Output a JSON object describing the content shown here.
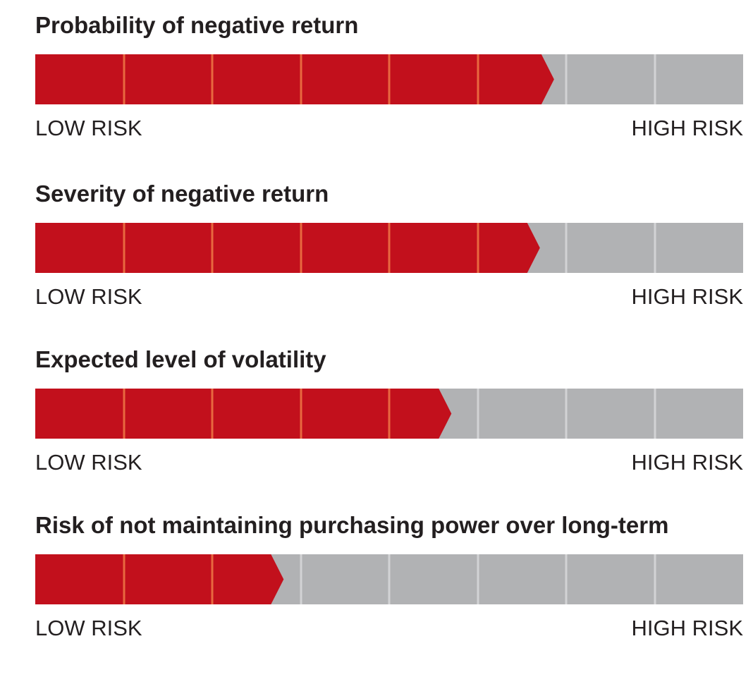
{
  "colors": {
    "filled": "#c2101c",
    "empty": "#b1b2b4",
    "filled_divider": "#e8693f",
    "empty_divider": "#d2d3d5",
    "text": "#231f20"
  },
  "segments_total": 8,
  "scales": [
    {
      "title": "Probability of negative return",
      "filled_fraction": 0.715,
      "low_label": "LOW RISK",
      "high_label": "HIGH RISK"
    },
    {
      "title": "Severity of negative return",
      "filled_fraction": 0.695,
      "low_label": "LOW RISK",
      "high_label": "HIGH RISK"
    },
    {
      "title": "Expected level of volatility",
      "filled_fraction": 0.57,
      "low_label": "LOW RISK",
      "high_label": "HIGH RISK"
    },
    {
      "title": "Risk of not maintaining purchasing power over long-term",
      "filled_fraction": 0.333,
      "low_label": "LOW RISK",
      "high_label": "HIGH RISK"
    }
  ]
}
